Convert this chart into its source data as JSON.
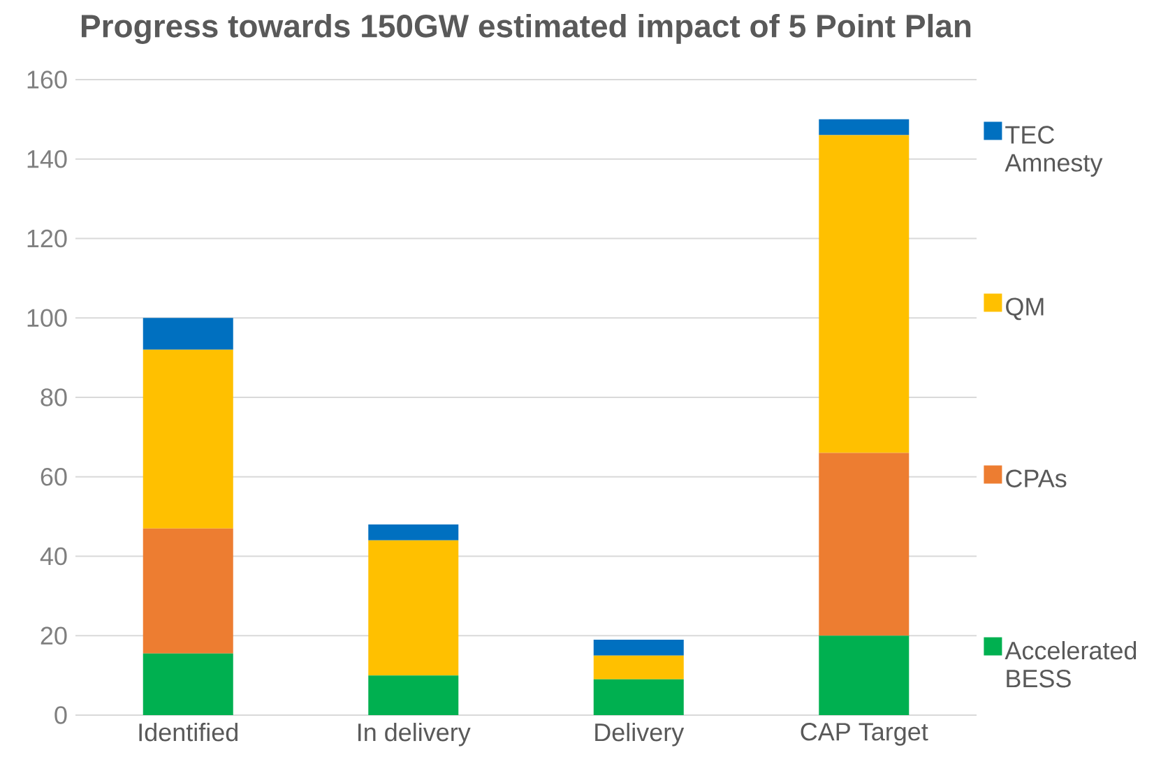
{
  "chart_data": {
    "type": "bar",
    "title": "Progress towards 150GW estimated impact of 5 Point Plan",
    "categories": [
      "Identified",
      "In delivery",
      "Delivery",
      "CAP Target"
    ],
    "stacked": true,
    "series": [
      {
        "name": "Accelerated BESS",
        "color": "#00b050",
        "values": [
          15.5,
          10,
          9,
          20
        ]
      },
      {
        "name": "CPAs",
        "color": "#ed7d31",
        "values": [
          31.5,
          0,
          0,
          46
        ]
      },
      {
        "name": "QM",
        "color": "#ffc000",
        "values": [
          45,
          34,
          6,
          80
        ]
      },
      {
        "name": "TEC Amnesty",
        "color": "#0070c0",
        "values": [
          8,
          4,
          4,
          4
        ]
      }
    ],
    "ylim": [
      0,
      160
    ],
    "yticks": [
      0,
      20,
      40,
      60,
      80,
      100,
      120,
      140,
      160
    ],
    "grid": "y",
    "legend": "right"
  }
}
